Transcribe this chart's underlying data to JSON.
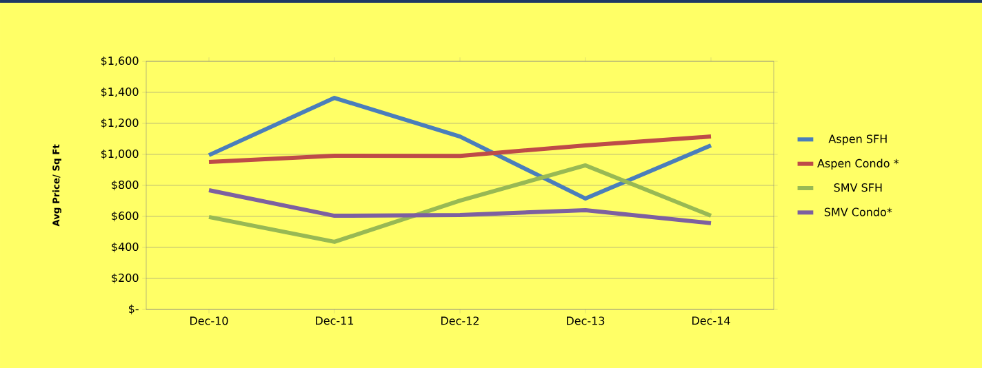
{
  "chart_data": {
    "type": "line",
    "ylabel": "Avg Price/ Sq Ft",
    "categories": [
      "Dec-10",
      "Dec-11",
      "Dec-12",
      "Dec-13",
      "Dec-14"
    ],
    "series": [
      {
        "name": "Aspen SFH",
        "color": "#4a7ebb",
        "values": [
          995,
          1364,
          1115,
          715,
          1058
        ]
      },
      {
        "name": "Aspen Condo *",
        "color": "#be4b48",
        "values": [
          951,
          991,
          990,
          1058,
          1115
        ]
      },
      {
        "name": "SMV SFH",
        "color": "#98b954",
        "values": [
          596,
          436,
          702,
          929,
          604
        ]
      },
      {
        "name": "SMV Condo*",
        "color": "#7d60a0",
        "values": [
          769,
          604,
          609,
          640,
          556
        ]
      }
    ],
    "ylim": [
      0,
      1600
    ],
    "yticks": [
      {
        "value": 0,
        "label": "$-"
      },
      {
        "value": 200,
        "label": "$200"
      },
      {
        "value": 400,
        "label": "$400"
      },
      {
        "value": 600,
        "label": "$600"
      },
      {
        "value": 800,
        "label": "$800"
      },
      {
        "value": 1000,
        "label": "$1,000"
      },
      {
        "value": 1200,
        "label": "$1,200"
      },
      {
        "value": 1400,
        "label": "$1,400"
      },
      {
        "value": 1600,
        "label": "$1,600"
      }
    ],
    "grid": "y",
    "legend": "right",
    "marker": "none",
    "line_style": "solid"
  }
}
